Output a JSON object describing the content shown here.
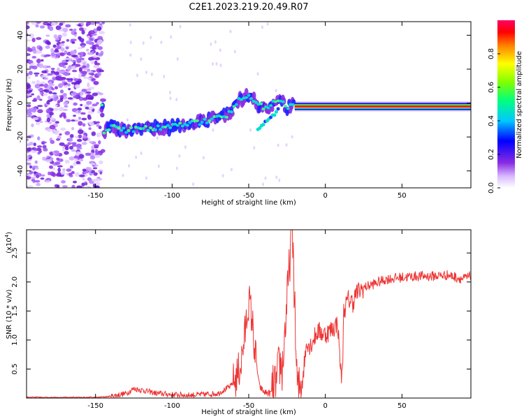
{
  "title": "C2E1.2023.219.20.49.R07",
  "chart_data": [
    {
      "type": "heatmap",
      "xlabel": "Height of straight line (km)",
      "ylabel": "Frequency (Hz)",
      "xlim": [
        -195,
        95
      ],
      "ylim": [
        -50,
        48
      ],
      "xticks": [
        -150,
        -100,
        -50,
        0,
        50
      ],
      "yticks": [
        -40,
        -20,
        0,
        20,
        40
      ],
      "colorbar": {
        "label": "Normalized spectral amplitude",
        "range": [
          0,
          1
        ],
        "ticks": [
          "0.0",
          "0.2",
          "0.4",
          "0.6",
          "0.8"
        ],
        "colors": [
          "#ffffff",
          "#d8b8ff",
          "#8a2be2",
          "#0000ff",
          "#00c8ff",
          "#00ff80",
          "#80ff00",
          "#ffff00",
          "#ff8000",
          "#ff0000",
          "#ff0066"
        ]
      },
      "ridge": [
        {
          "x": -145,
          "y": -18
        },
        {
          "x": -140,
          "y": -14
        },
        {
          "x": -130,
          "y": -16
        },
        {
          "x": -120,
          "y": -15
        },
        {
          "x": -110,
          "y": -15
        },
        {
          "x": -100,
          "y": -14
        },
        {
          "x": -90,
          "y": -12
        },
        {
          "x": -80,
          "y": -11
        },
        {
          "x": -70,
          "y": -9
        },
        {
          "x": -62,
          "y": -6
        },
        {
          "x": -57,
          "y": 2
        },
        {
          "x": -50,
          "y": 4
        },
        {
          "x": -45,
          "y": 0
        },
        {
          "x": -40,
          "y": -3
        },
        {
          "x": -35,
          "y": -1
        },
        {
          "x": -30,
          "y": 2
        },
        {
          "x": -25,
          "y": -3
        },
        {
          "x": -20,
          "y": 0
        },
        {
          "x": -10,
          "y": -2
        },
        {
          "x": 0,
          "y": -2
        },
        {
          "x": 20,
          "y": -2
        },
        {
          "x": 50,
          "y": -2
        },
        {
          "x": 92,
          "y": -2
        }
      ]
    },
    {
      "type": "line",
      "xlabel": "Height of straight line (km)",
      "ylabel": "SNR (10 * v/v)",
      "scale_label": "(x10",
      "scale_exp": "4",
      "scale_close": ")",
      "xlim": [
        -195,
        95
      ],
      "ylim": [
        0,
        2.9
      ],
      "xticks": [
        -150,
        -100,
        -50,
        0,
        50
      ],
      "yticks": [
        0.5,
        1.0,
        1.5,
        2.0,
        2.5
      ],
      "ytick_labels": [
        "0.5",
        "1.0",
        "1.5",
        "2.0",
        "2.5"
      ],
      "line_color": "#ee3333",
      "series": [
        {
          "x": [
            -195,
            -150,
            -140,
            -130,
            -125,
            -120,
            -110,
            -100,
            -90,
            -80,
            -70,
            -62,
            -58,
            -55,
            -52,
            -50,
            -48,
            -46,
            -43,
            -40,
            -36,
            -32,
            -30,
            -28,
            -26,
            -24,
            -22,
            -21,
            -20,
            -19,
            -18,
            -15,
            -12,
            -10,
            -5,
            0,
            5,
            8,
            10,
            11,
            12,
            15,
            18,
            20,
            25,
            30,
            35,
            40,
            50,
            60,
            70,
            80,
            90,
            95
          ],
          "y": [
            0.01,
            0.01,
            0.03,
            0.08,
            0.16,
            0.14,
            0.08,
            0.06,
            0.05,
            0.06,
            0.08,
            0.2,
            0.35,
            0.6,
            1.2,
            1.7,
            1.4,
            0.8,
            0.2,
            0.1,
            0.08,
            0.2,
            0.6,
            0.5,
            1.3,
            2.0,
            3.0,
            2.6,
            1.6,
            0.6,
            0.1,
            0.3,
            1.0,
            0.9,
            1.15,
            1.1,
            1.2,
            1.3,
            0.5,
            0.3,
            1.5,
            1.7,
            1.65,
            1.8,
            1.9,
            1.95,
            2.0,
            2.05,
            2.08,
            2.1,
            2.1,
            2.12,
            2.05,
            2.1
          ]
        }
      ]
    }
  ]
}
